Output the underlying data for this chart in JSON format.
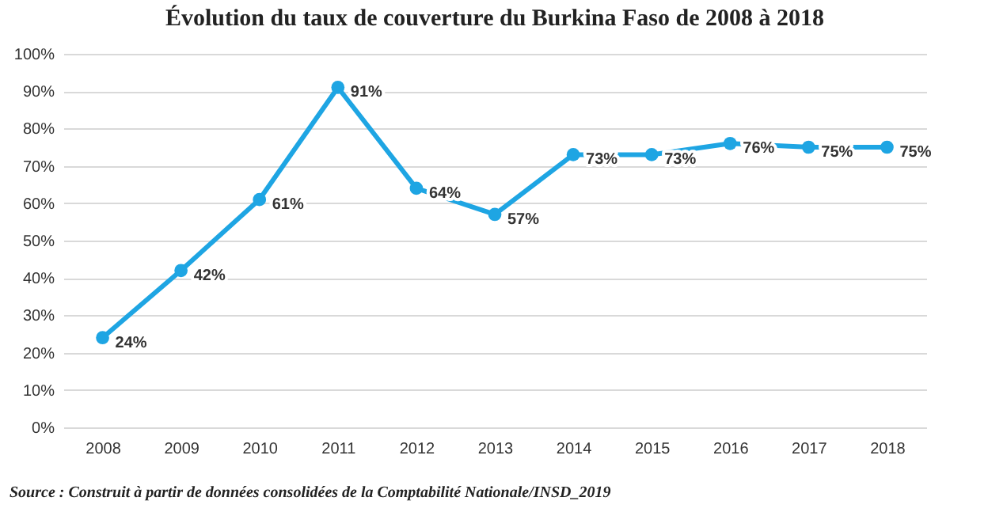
{
  "chart_data": {
    "type": "line",
    "title": "Évolution du taux de couverture  du Burkina Faso de 2008 à 2018",
    "categories": [
      "2008",
      "2009",
      "2010",
      "2011",
      "2012",
      "2013",
      "2014",
      "2015",
      "2016",
      "2017",
      "2018"
    ],
    "series": [
      {
        "color": "#1ea5e3",
        "values": [
          24,
          42,
          61,
          91,
          64,
          57,
          73,
          73,
          76,
          75,
          75
        ],
        "value_labels": [
          "24%",
          "42%",
          "61%",
          "91%",
          "64%",
          "57%",
          "73%",
          "73%",
          "76%",
          "75%",
          "75%"
        ]
      }
    ],
    "ylim": [
      0,
      100
    ],
    "yticks": [
      {
        "value": 0,
        "label": "0%"
      },
      {
        "value": 10,
        "label": "10%"
      },
      {
        "value": 20,
        "label": "20%"
      },
      {
        "value": 30,
        "label": "30%"
      },
      {
        "value": 40,
        "label": "40%"
      },
      {
        "value": 50,
        "label": "50%"
      },
      {
        "value": 60,
        "label": "60%"
      },
      {
        "value": 70,
        "label": "70%"
      },
      {
        "value": 80,
        "label": "80%"
      },
      {
        "value": 90,
        "label": "90%"
      },
      {
        "value": 100,
        "label": "100%"
      }
    ],
    "grid": "y",
    "marker": "circle",
    "line_style": "solid",
    "legend": false,
    "annotations": [
      "Source : Construit à partir de données consolidées de la Comptabilité Nationale/INSD_2019"
    ]
  }
}
